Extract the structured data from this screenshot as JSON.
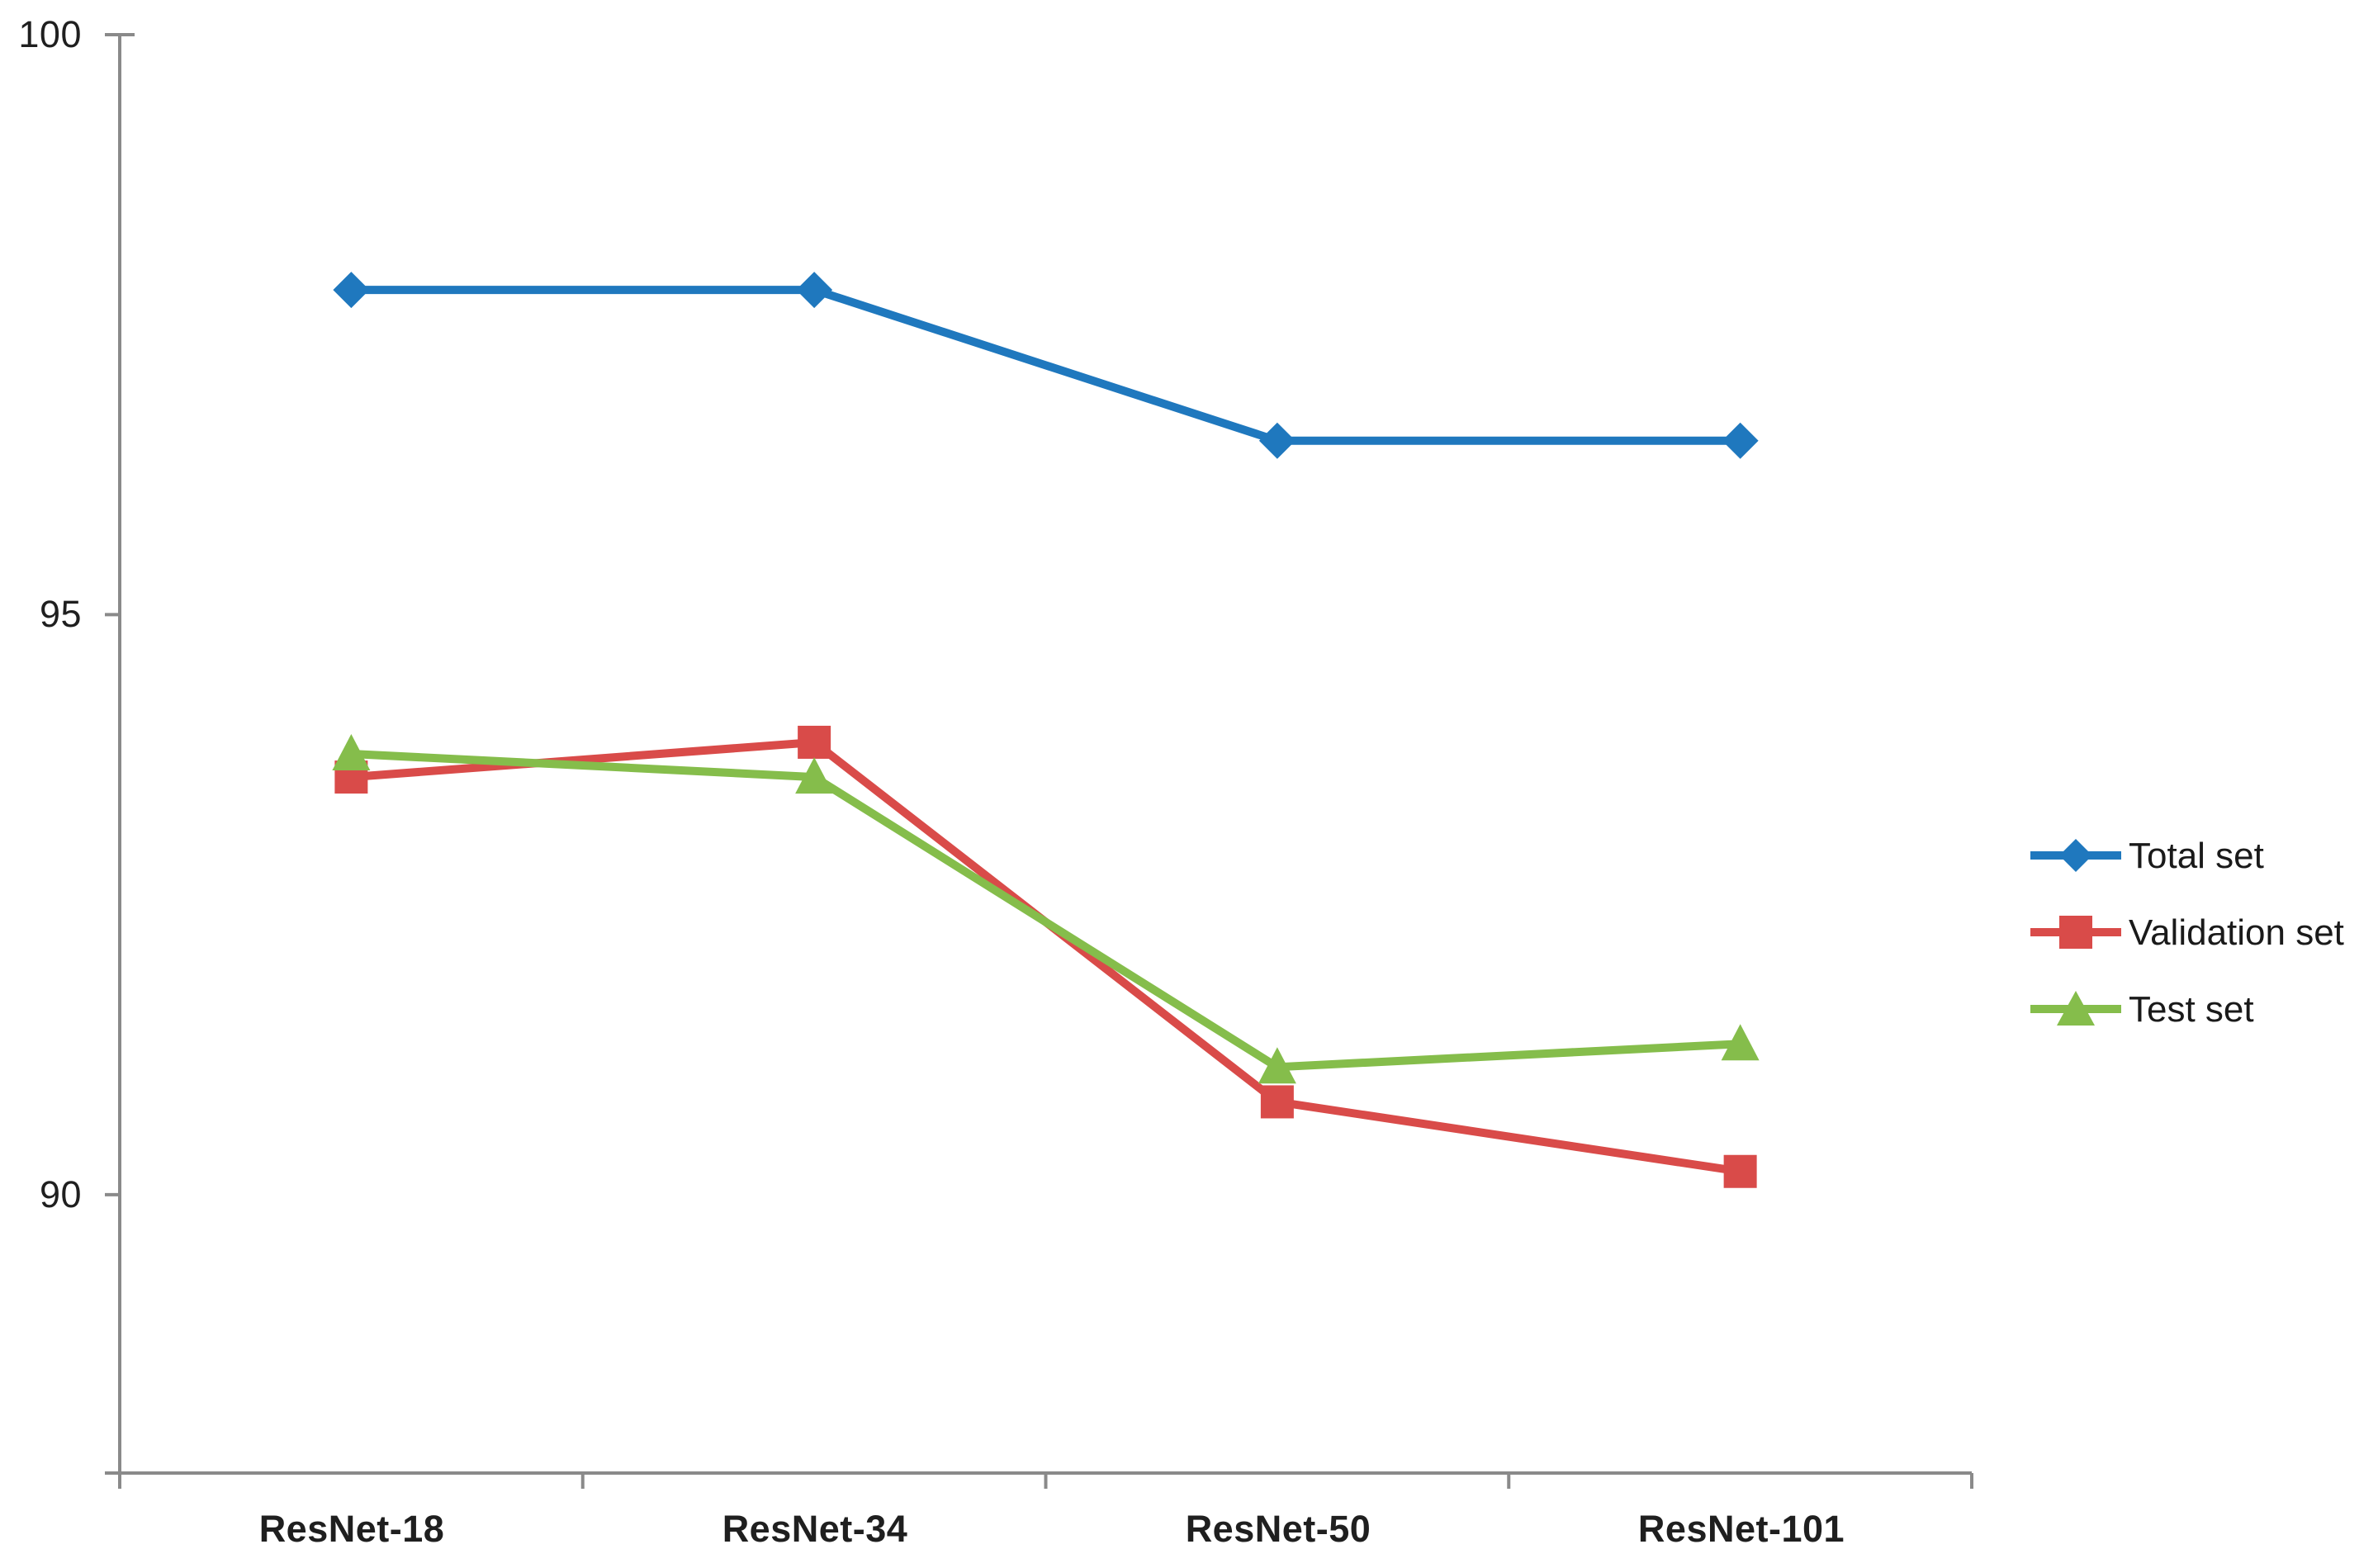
{
  "chart_data": {
    "type": "line",
    "title": "",
    "xlabel": "",
    "ylabel": "",
    "categories": [
      "ResNet-18",
      "ResNet-34",
      "ResNet-50",
      "ResNet-101"
    ],
    "series": [
      {
        "name": "Total set",
        "marker": "diamond",
        "color": "#1F78BE",
        "values": [
          97.8,
          97.8,
          96.5,
          96.5
        ]
      },
      {
        "name": "Validation set",
        "marker": "square",
        "color": "#D94B49",
        "values": [
          93.6,
          93.9,
          90.8,
          90.2
        ]
      },
      {
        "name": "Test set",
        "marker": "triangle",
        "color": "#85BD4B",
        "values": [
          93.8,
          93.6,
          91.1,
          91.3
        ]
      }
    ],
    "yticks": [
      100,
      95,
      90
    ],
    "ylim": [
      87.6,
      100
    ],
    "grid": false,
    "legend_position": "right",
    "axis_color": "#8a8a8a",
    "text_color": "#1f1f1f"
  }
}
